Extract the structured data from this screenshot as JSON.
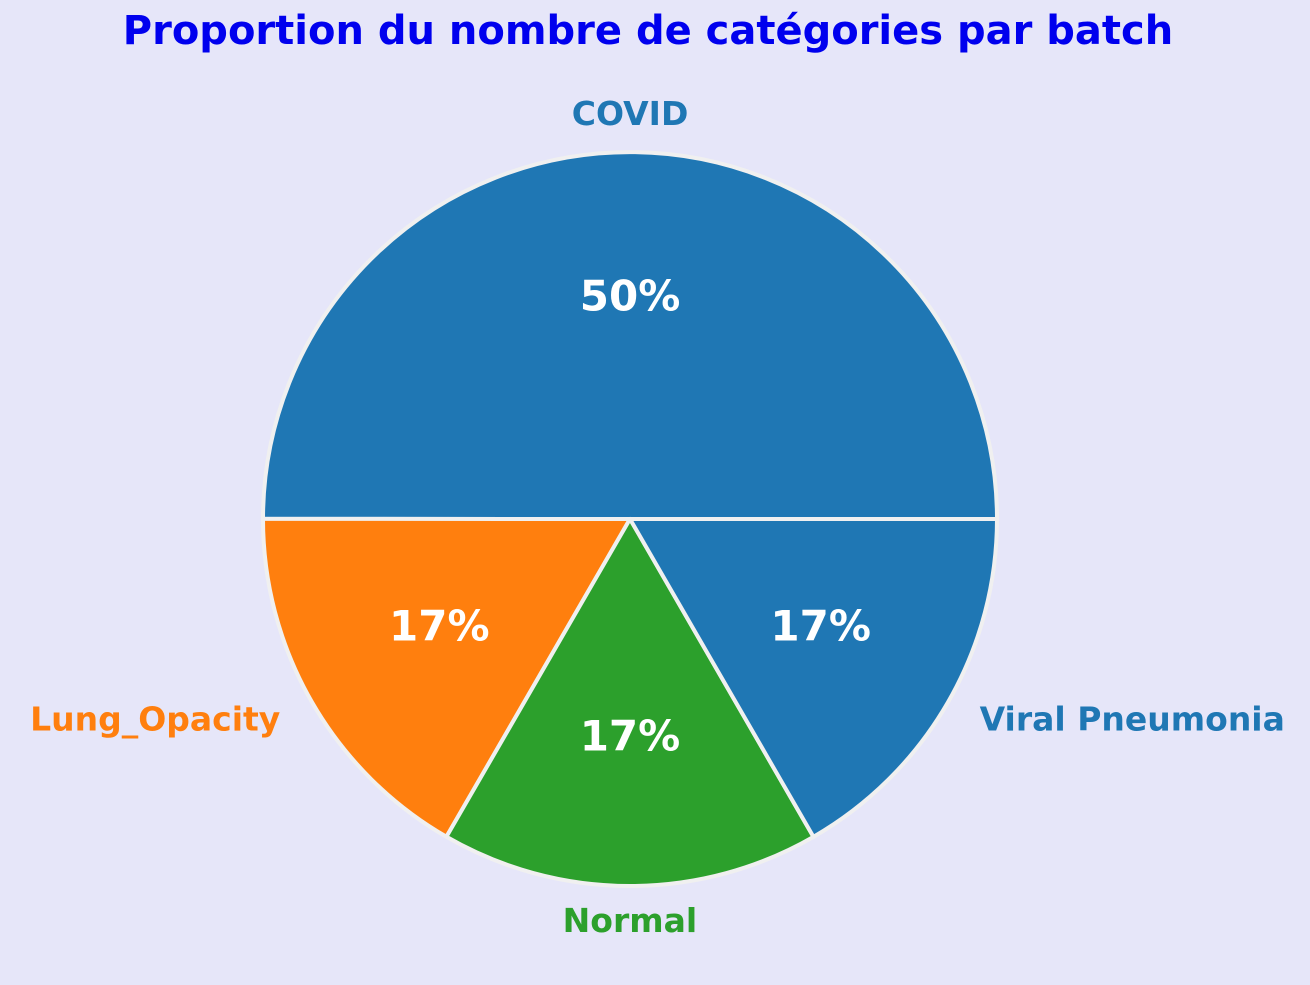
{
  "chart_data": {
    "type": "pie",
    "title": "Proportion du nombre de catégories par batch",
    "title_color": "#0000ee",
    "background_color": "#e6e6f9",
    "slices": [
      {
        "label": "COVID",
        "value": 50,
        "pct_label": "50%",
        "color": "#1f77b4"
      },
      {
        "label": "Lung_Opacity",
        "value": 16.67,
        "pct_label": "17%",
        "color": "#ff7f0e"
      },
      {
        "label": "Normal",
        "value": 16.67,
        "pct_label": "17%",
        "color": "#2ca02c"
      },
      {
        "label": "Viral Pneumonia",
        "value": 16.67,
        "pct_label": "17%",
        "color": "#1f77b4"
      }
    ],
    "pct_label_color": "#ffffff",
    "edge_color": "#f0f0f0",
    "start_angle_deg": 0,
    "direction": "counterclockwise"
  }
}
